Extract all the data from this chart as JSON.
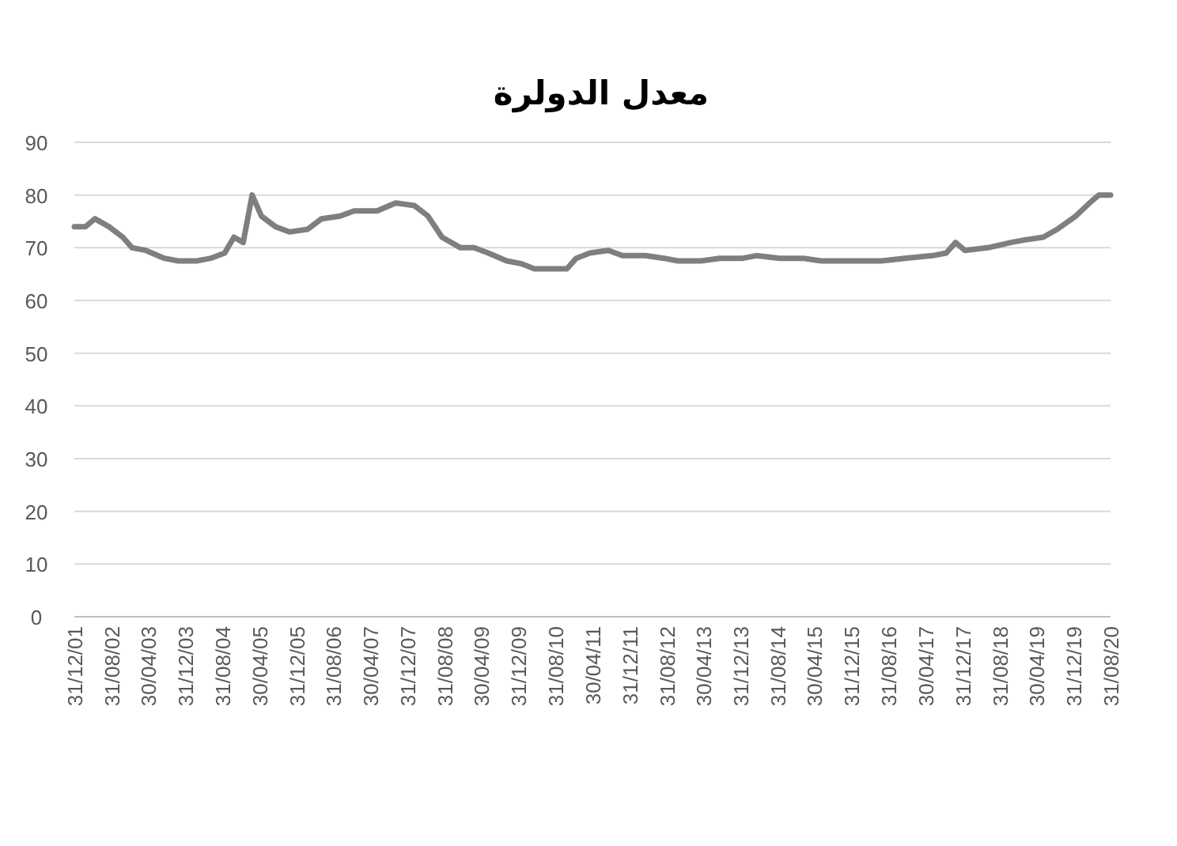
{
  "chart_data": {
    "type": "line",
    "title": "معدل الدولرة",
    "grid": "y",
    "marker": "none",
    "line_style": "solid",
    "ylim": [
      0,
      90
    ],
    "yticks": [
      0,
      10,
      20,
      30,
      40,
      50,
      60,
      70,
      80,
      90
    ],
    "xlim": [
      "2001-12-31",
      "2020-08-31"
    ],
    "xticks": [
      {
        "value": "2001-12-31",
        "label": "31/12/01"
      },
      {
        "value": "2002-08-31",
        "label": "31/08/02"
      },
      {
        "value": "2003-04-30",
        "label": "30/04/03"
      },
      {
        "value": "2003-12-31",
        "label": "31/12/03"
      },
      {
        "value": "2004-08-31",
        "label": "31/08/04"
      },
      {
        "value": "2005-04-30",
        "label": "30/04/05"
      },
      {
        "value": "2005-12-31",
        "label": "31/12/05"
      },
      {
        "value": "2006-08-31",
        "label": "31/08/06"
      },
      {
        "value": "2007-04-30",
        "label": "30/04/07"
      },
      {
        "value": "2007-12-31",
        "label": "31/12/07"
      },
      {
        "value": "2008-08-31",
        "label": "31/08/08"
      },
      {
        "value": "2009-04-30",
        "label": "30/04/09"
      },
      {
        "value": "2009-12-31",
        "label": "31/12/09"
      },
      {
        "value": "2010-08-31",
        "label": "31/08/10"
      },
      {
        "value": "2011-04-30",
        "label": "30/04/11"
      },
      {
        "value": "2011-12-31",
        "label": "31/12/11"
      },
      {
        "value": "2012-08-31",
        "label": "31/08/12"
      },
      {
        "value": "2013-04-30",
        "label": "30/04/13"
      },
      {
        "value": "2013-12-31",
        "label": "31/12/13"
      },
      {
        "value": "2014-08-31",
        "label": "31/08/14"
      },
      {
        "value": "2015-04-30",
        "label": "30/04/15"
      },
      {
        "value": "2015-12-31",
        "label": "31/12/15"
      },
      {
        "value": "2016-08-31",
        "label": "31/08/16"
      },
      {
        "value": "2017-04-30",
        "label": "30/04/17"
      },
      {
        "value": "2017-12-31",
        "label": "31/12/17"
      },
      {
        "value": "2018-08-31",
        "label": "31/08/18"
      },
      {
        "value": "2019-04-30",
        "label": "30/04/19"
      },
      {
        "value": "2019-12-31",
        "label": "31/12/19"
      },
      {
        "value": "2020-08-31",
        "label": "31/08/20"
      }
    ],
    "x": [
      "2001-12-31",
      "2002-03-15",
      "2002-05-15",
      "2002-08-15",
      "2002-11-15",
      "2003-01-15",
      "2003-04-15",
      "2003-08-15",
      "2003-11-15",
      "2004-03-15",
      "2004-06-15",
      "2004-09-15",
      "2004-11-15",
      "2005-01-15",
      "2005-03-15",
      "2005-05-15",
      "2005-08-15",
      "2005-11-15",
      "2006-03-15",
      "2006-06-15",
      "2006-10-15",
      "2007-01-15",
      "2007-06-15",
      "2007-10-15",
      "2008-02-15",
      "2008-05-15",
      "2008-08-15",
      "2008-12-15",
      "2009-03-15",
      "2009-06-15",
      "2009-10-15",
      "2010-01-15",
      "2010-04-15",
      "2010-08-15",
      "2010-11-15",
      "2011-01-15",
      "2011-04-15",
      "2011-08-15",
      "2011-11-15",
      "2012-04-15",
      "2012-08-15",
      "2012-11-15",
      "2013-04-15",
      "2013-08-15",
      "2014-01-15",
      "2014-04-15",
      "2014-09-15",
      "2015-02-15",
      "2015-06-15",
      "2015-11-15",
      "2016-07-15",
      "2016-12-15",
      "2017-06-15",
      "2017-09-15",
      "2017-11-15",
      "2018-01-15",
      "2018-06-15",
      "2018-11-15",
      "2019-02-15",
      "2019-06-15",
      "2019-09-15",
      "2020-01-15",
      "2020-04-15",
      "2020-06-15",
      "2020-08-31"
    ],
    "series": [
      {
        "color": "#7f7f7f",
        "values": [
          74,
          74,
          75.5,
          74,
          72,
          70,
          69.5,
          68,
          67.5,
          67.5,
          68,
          69,
          72,
          71,
          80,
          76,
          74,
          73,
          73.5,
          75.5,
          76,
          77,
          77,
          78.5,
          78,
          76,
          72,
          70,
          70,
          69,
          67.5,
          67,
          66,
          66,
          66,
          68,
          69,
          69.5,
          68.5,
          68.5,
          68,
          67.5,
          67.5,
          68,
          68,
          68.5,
          68,
          68,
          67.5,
          67.5,
          67.5,
          68,
          68.5,
          69,
          71,
          69.5,
          70,
          71,
          71.5,
          72,
          73.5,
          76,
          78.5,
          80,
          80
        ]
      }
    ]
  }
}
